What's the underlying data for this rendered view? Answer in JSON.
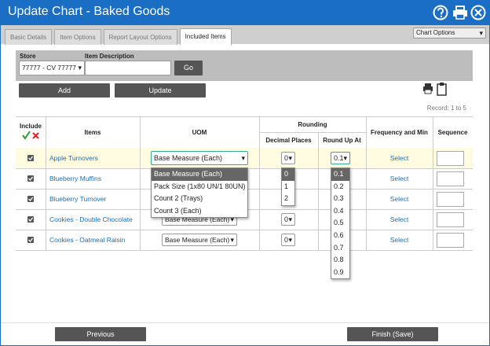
{
  "header": {
    "title": "Update Chart - Baked Goods"
  },
  "tabs": [
    {
      "label": "Basic Details",
      "active": false
    },
    {
      "label": "Item Options",
      "active": false
    },
    {
      "label": "Report Layout Options",
      "active": false
    },
    {
      "label": "Included Items",
      "active": true
    }
  ],
  "chart_options": "Chart Options",
  "filter": {
    "store_label": "Store",
    "store_value": "77777 - CV 77777",
    "item_description_label": "Item Description",
    "go": "Go"
  },
  "actions": {
    "add": "Add",
    "update": "Update"
  },
  "record": "Record: 1 to 5",
  "table": {
    "headers": {
      "include": "Include",
      "items": "Items",
      "uom": "UOM",
      "rounding": "Rounding",
      "decimal_places": "Decimal Places",
      "round_up_at": "Round Up At",
      "frequency": "Frequency and Min",
      "sequence": "Sequence"
    },
    "rows": [
      {
        "checked": true,
        "item": "Apple Turnovers",
        "uom": "Base Measure (Each)",
        "decimal_places": "0",
        "round_up_at": "0.1",
        "frequency": "Select"
      },
      {
        "checked": true,
        "item": "Blueberry Muffins",
        "frequency": "Select"
      },
      {
        "checked": true,
        "item": "Blueberry Turnover",
        "frequency": "Select"
      },
      {
        "checked": true,
        "item": "Cookies - Double Chocolate",
        "uom": "Base Measure (Each)",
        "decimal_places": "0",
        "frequency": "Select"
      },
      {
        "checked": true,
        "item": "Cookies - Oatmeal Raisin",
        "uom": "Base Measure (Each)",
        "decimal_places": "0",
        "frequency": "Select"
      }
    ]
  },
  "dropdowns": {
    "uom": [
      "Base Measure (Each)",
      "Pack Size (1x80 UN/1 80UN)",
      "Count 2 (Trays)",
      "Count 3 (Each)"
    ],
    "decimal_places": [
      "0",
      "1",
      "2"
    ],
    "round_up_at": [
      "0.1",
      "0.2",
      "0.3",
      "0.4",
      "0.5",
      "0.6",
      "0.7",
      "0.8",
      "0.9"
    ]
  },
  "footer": {
    "previous": "Previous",
    "finish": "Finish (Save)"
  }
}
